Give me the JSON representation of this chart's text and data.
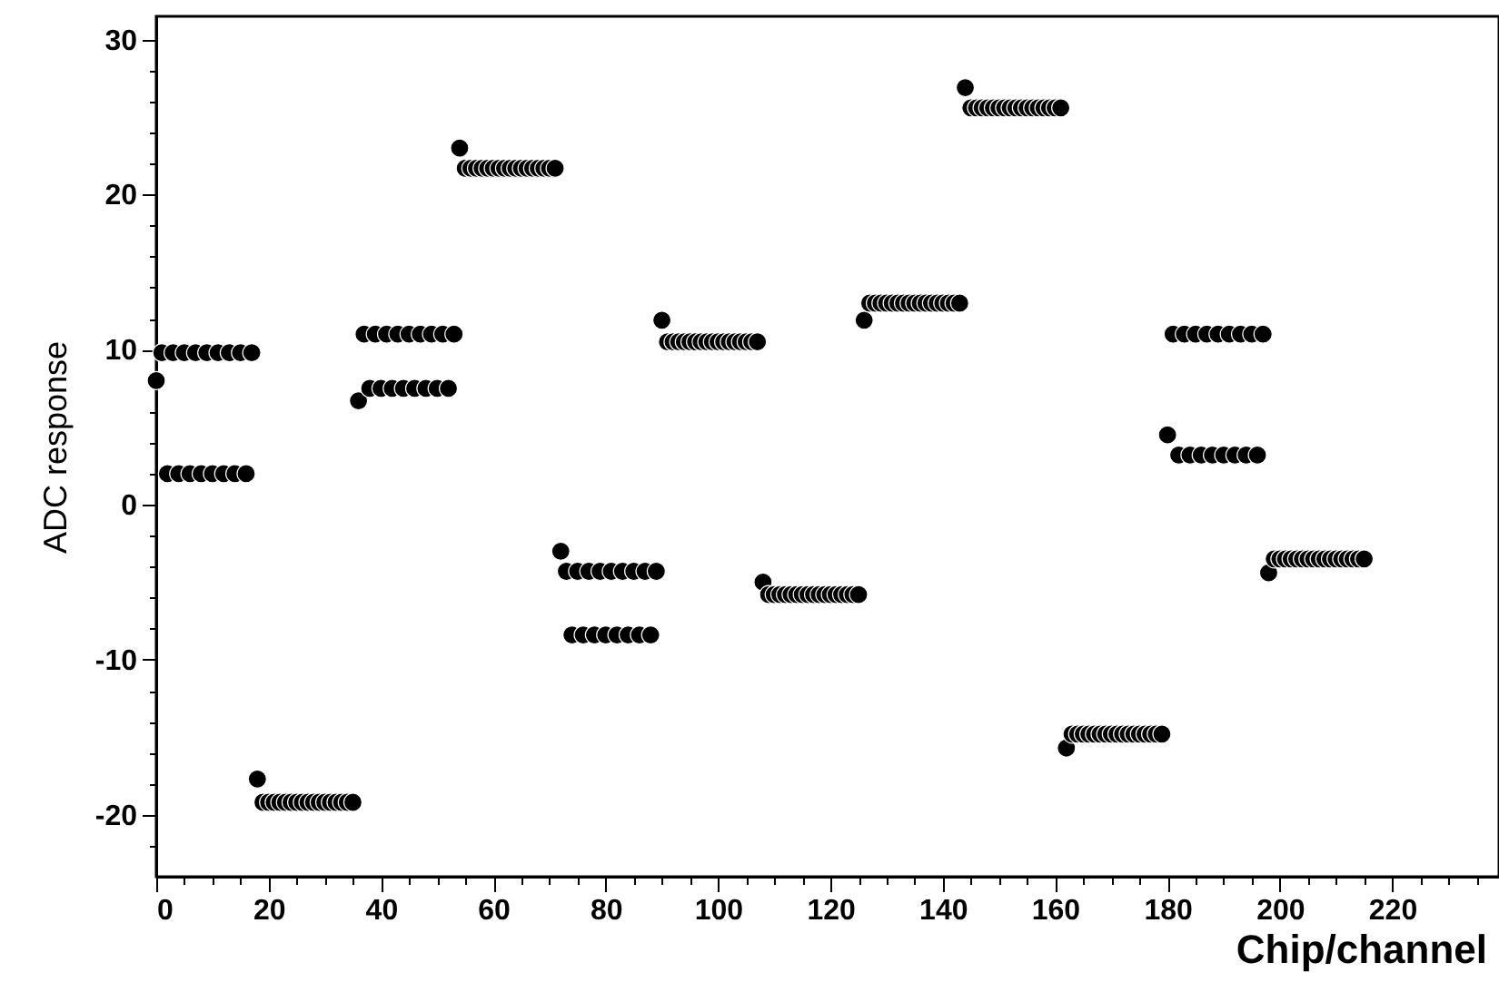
{
  "chart_data": {
    "type": "scatter",
    "xlabel": "Chip/channel",
    "ylabel": "ADC response",
    "marker": "circle",
    "grid": false,
    "xlim": [
      0,
      239
    ],
    "ylim": [
      -24,
      31.5
    ],
    "xticks": [
      0,
      {
        "value": 5,
        "label": null
      },
      {
        "value": 10,
        "label": null
      },
      {
        "value": 15,
        "label": null
      },
      20,
      {
        "value": 25,
        "label": null
      },
      {
        "value": 30,
        "label": null
      },
      {
        "value": 35,
        "label": null
      },
      40,
      {
        "value": 45,
        "label": null
      },
      {
        "value": 50,
        "label": null
      },
      {
        "value": 55,
        "label": null
      },
      60,
      {
        "value": 65,
        "label": null
      },
      {
        "value": 70,
        "label": null
      },
      {
        "value": 75,
        "label": null
      },
      80,
      {
        "value": 85,
        "label": null
      },
      {
        "value": 90,
        "label": null
      },
      {
        "value": 95,
        "label": null
      },
      100,
      {
        "value": 105,
        "label": null
      },
      {
        "value": 110,
        "label": null
      },
      {
        "value": 115,
        "label": null
      },
      120,
      {
        "value": 125,
        "label": null
      },
      {
        "value": 130,
        "label": null
      },
      {
        "value": 135,
        "label": null
      },
      140,
      {
        "value": 145,
        "label": null
      },
      {
        "value": 150,
        "label": null
      },
      {
        "value": 155,
        "label": null
      },
      160,
      {
        "value": 165,
        "label": null
      },
      {
        "value": 170,
        "label": null
      },
      {
        "value": 175,
        "label": null
      },
      180,
      {
        "value": 185,
        "label": null
      },
      {
        "value": 190,
        "label": null
      },
      {
        "value": 195,
        "label": null
      },
      200,
      {
        "value": 205,
        "label": null
      },
      {
        "value": 210,
        "label": null
      },
      {
        "value": 215,
        "label": null
      },
      220,
      {
        "value": 225,
        "label": null
      },
      {
        "value": 230,
        "label": null
      },
      {
        "value": 235,
        "label": null
      }
    ],
    "yticks": [
      {
        "value": -22,
        "label": null
      },
      -20,
      {
        "value": -18,
        "label": null
      },
      {
        "value": -16,
        "label": null
      },
      {
        "value": -14,
        "label": null
      },
      {
        "value": -12,
        "label": null
      },
      -10,
      {
        "value": -8,
        "label": null
      },
      {
        "value": -6,
        "label": null
      },
      {
        "value": -4,
        "label": null
      },
      {
        "value": -2,
        "label": null
      },
      0,
      {
        "value": 2,
        "label": null
      },
      {
        "value": 4,
        "label": null
      },
      {
        "value": 6,
        "label": null
      },
      {
        "value": 8,
        "label": null
      },
      10,
      {
        "value": 12,
        "label": null
      },
      {
        "value": 14,
        "label": null
      },
      {
        "value": 16,
        "label": null
      },
      {
        "value": 18,
        "label": null
      },
      20,
      {
        "value": 22,
        "label": null
      },
      {
        "value": 24,
        "label": null
      },
      {
        "value": 26,
        "label": null
      },
      {
        "value": 28,
        "label": null
      },
      30
    ],
    "x": [
      0,
      1,
      2,
      3,
      4,
      5,
      6,
      7,
      8,
      9,
      10,
      11,
      12,
      13,
      14,
      15,
      16,
      17,
      18,
      19,
      20,
      21,
      22,
      23,
      24,
      25,
      26,
      27,
      28,
      29,
      30,
      31,
      32,
      33,
      34,
      35,
      36,
      37,
      38,
      39,
      40,
      41,
      42,
      43,
      44,
      45,
      46,
      47,
      48,
      49,
      50,
      51,
      52,
      53,
      54,
      55,
      56,
      57,
      58,
      59,
      60,
      61,
      62,
      63,
      64,
      65,
      66,
      67,
      68,
      69,
      70,
      71,
      72,
      73,
      74,
      75,
      76,
      77,
      78,
      79,
      80,
      81,
      82,
      83,
      84,
      85,
      86,
      87,
      88,
      89,
      90,
      91,
      92,
      93,
      94,
      95,
      96,
      97,
      98,
      99,
      100,
      101,
      102,
      103,
      104,
      105,
      106,
      107,
      108,
      109,
      110,
      111,
      112,
      113,
      114,
      115,
      116,
      117,
      118,
      119,
      120,
      121,
      122,
      123,
      124,
      125,
      126,
      127,
      128,
      129,
      130,
      131,
      132,
      133,
      134,
      135,
      136,
      137,
      138,
      139,
      140,
      141,
      142,
      143,
      144,
      145,
      146,
      147,
      148,
      149,
      150,
      151,
      152,
      153,
      154,
      155,
      156,
      157,
      158,
      159,
      160,
      161,
      162,
      163,
      164,
      165,
      166,
      167,
      168,
      169,
      170,
      171,
      172,
      173,
      174,
      175,
      176,
      177,
      178,
      179,
      180,
      181,
      182,
      183,
      184,
      185,
      186,
      187,
      188,
      189,
      190,
      191,
      192,
      193,
      194,
      195,
      196,
      197,
      198,
      199,
      200,
      201,
      202,
      203,
      204,
      205,
      206,
      207,
      208,
      209,
      210,
      211,
      212,
      213,
      214,
      215
    ],
    "series": [
      {
        "color": "#000000",
        "values": [
          8,
          9.8,
          2,
          9.8,
          2,
          9.8,
          2,
          9.8,
          2,
          9.8,
          2,
          9.8,
          2,
          9.8,
          2,
          9.8,
          2,
          9.8,
          -17.7,
          -19.2,
          -19.2,
          -19.2,
          -19.2,
          -19.2,
          -19.2,
          -19.2,
          -19.2,
          -19.2,
          -19.2,
          -19.2,
          -19.2,
          -19.2,
          -19.2,
          -19.2,
          -19.2,
          -19.2,
          6.7,
          11,
          7.5,
          11,
          7.5,
          11,
          7.5,
          11,
          7.5,
          11,
          7.5,
          11,
          7.5,
          11,
          7.5,
          11,
          7.5,
          11,
          23,
          21.7,
          21.7,
          21.7,
          21.7,
          21.7,
          21.7,
          21.7,
          21.7,
          21.7,
          21.7,
          21.7,
          21.7,
          21.7,
          21.7,
          21.7,
          21.7,
          21.7,
          -3,
          -4.3,
          -8.4,
          -4.3,
          -8.4,
          -4.3,
          -8.4,
          -4.3,
          -8.4,
          -4.3,
          -8.4,
          -4.3,
          -8.4,
          -4.3,
          -8.4,
          -4.3,
          -8.4,
          -4.3,
          11.9,
          10.5,
          10.5,
          10.5,
          10.5,
          10.5,
          10.5,
          10.5,
          10.5,
          10.5,
          10.5,
          10.5,
          10.5,
          10.5,
          10.5,
          10.5,
          10.5,
          10.5,
          -5,
          -5.8,
          -5.8,
          -5.8,
          -5.8,
          -5.8,
          -5.8,
          -5.8,
          -5.8,
          -5.8,
          -5.8,
          -5.8,
          -5.8,
          -5.8,
          -5.8,
          -5.8,
          -5.8,
          -5.8,
          11.9,
          13,
          13,
          13,
          13,
          13,
          13,
          13,
          13,
          13,
          13,
          13,
          13,
          13,
          13,
          13,
          13,
          13,
          26.9,
          25.6,
          25.6,
          25.6,
          25.6,
          25.6,
          25.6,
          25.6,
          25.6,
          25.6,
          25.6,
          25.6,
          25.6,
          25.6,
          25.6,
          25.6,
          25.6,
          25.6,
          -15.7,
          -14.8,
          -14.8,
          -14.8,
          -14.8,
          -14.8,
          -14.8,
          -14.8,
          -14.8,
          -14.8,
          -14.8,
          -14.8,
          -14.8,
          -14.8,
          -14.8,
          -14.8,
          -14.8,
          -14.8,
          4.5,
          11,
          3.2,
          11,
          3.2,
          11,
          3.2,
          11,
          3.2,
          11,
          3.2,
          11,
          3.2,
          11,
          3.2,
          11,
          3.2,
          11,
          -4.4,
          -3.5,
          -3.5,
          -3.5,
          -3.5,
          -3.5,
          -3.5,
          -3.5,
          -3.5,
          -3.5,
          -3.5,
          -3.5,
          -3.5,
          -3.5,
          -3.5,
          -3.5,
          -3.5,
          -3.5
        ]
      }
    ]
  }
}
